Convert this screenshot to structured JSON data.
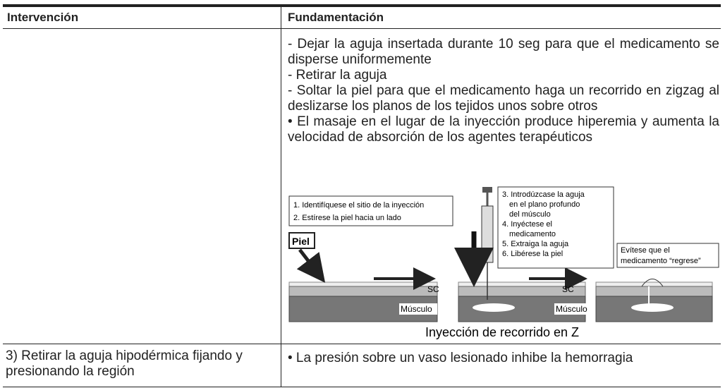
{
  "table": {
    "header": [
      "Intervención",
      "Fundamentación"
    ],
    "rows": [
      [
        "",
        [
          "- Dejar la aguja insertada durante 10 seg para que el medicamento se disperse uniformemente",
          "- Retirar la aguja",
          "- Soltar la piel para que el medicamento haga un recorrido en zigzag al deslizarse los planos de los tejidos unos sobre otros",
          "• El masaje en el lugar de la inyección produce hiperemia y aumenta la velocidad de absorción de los agentes terapéuticos"
        ]
      ],
      [
        "3) Retirar la aguja hipodérmica fijando y presionando la región",
        "• La presión sobre un vaso lesionado inhibe la hemorragia"
      ]
    ]
  },
  "figure": {
    "step_box_1": [
      "1. Identifíquese el sitio de la inyección",
      "2. Estírese la piel hacia un lado"
    ],
    "skin_label": "Piel",
    "step_box_2": [
      "3. Introdúzcase la aguja",
      "en el plano profundo",
      "del músculo",
      "4. Inyéctese el",
      "medicamento",
      "5. Extraiga la aguja",
      "6. Libérese la piel"
    ],
    "warning_box": [
      "Evítese que el",
      "medicamento “regrese”"
    ],
    "sc_label": "SC",
    "muscle_label": "Músculo",
    "caption": "Inyección de recorrido en Z"
  }
}
